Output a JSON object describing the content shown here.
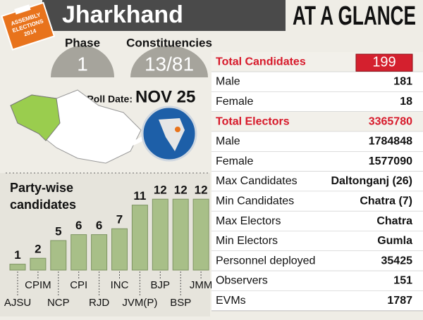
{
  "header": {
    "badge": [
      "ASSEMBLY",
      "ELECTIONS",
      "2014"
    ],
    "state": "Jharkhand",
    "title": "AT A GLANCE"
  },
  "summary": {
    "phase_label": "Phase",
    "phase": "1",
    "constituencies_label": "Constituencies",
    "constituencies": "13/81",
    "poll_date_label": "Poll Date:",
    "poll_date": "NOV 25"
  },
  "stats": {
    "rows": [
      [
        "Total Candidates",
        199
      ],
      [
        "Male",
        181
      ],
      [
        "Female",
        18
      ],
      [
        "Total Electors",
        3365780
      ],
      [
        "Male",
        1784848
      ],
      [
        "Female",
        1577090
      ],
      [
        "Max Candidates",
        "Daltonganj (26)"
      ],
      [
        "Min Candidates",
        "Chatra (7)"
      ],
      [
        "Max Electors",
        "Chatra"
      ],
      [
        "Min Electors",
        "Gumla"
      ],
      [
        "Personnel deployed",
        35425
      ],
      [
        "Observers",
        151
      ],
      [
        "EVMs",
        1787
      ]
    ]
  },
  "chart_data": {
    "type": "bar",
    "title": [
      "Party-wise",
      "candidates"
    ],
    "categories": [
      "AJSU",
      "CPIM",
      "NCP",
      "CPI",
      "RJD",
      "INC",
      "JVM(P)",
      "BJP",
      "BSP",
      "JMM"
    ],
    "values": [
      1,
      2,
      5,
      6,
      6,
      7,
      11,
      12,
      12,
      12
    ],
    "color": "#a8bf88"
  }
}
